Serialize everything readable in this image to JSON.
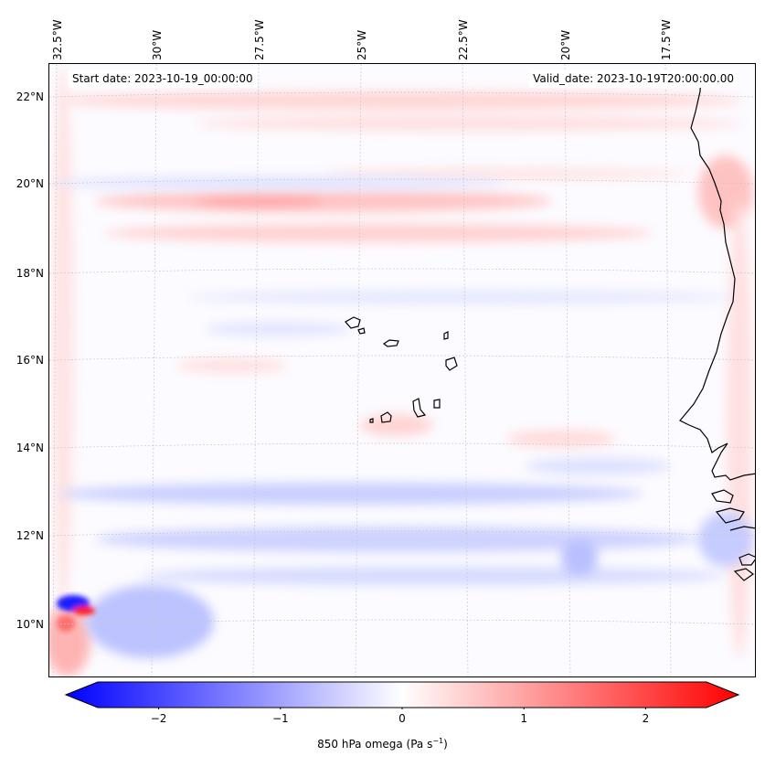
{
  "map": {
    "longitude_labels": [
      "32.5°W",
      "30°W",
      "27.5°W",
      "25°W",
      "22.5°W",
      "20°W",
      "17.5°W"
    ],
    "latitude_labels": [
      "22°N",
      "20°N",
      "18°N",
      "16°N",
      "14°N",
      "12°N",
      "10°N"
    ],
    "annotation_start": "Start date: 2023-10-19_00:00:00",
    "annotation_valid": "Valid_date: 2023-10-19T20:00:00.00"
  },
  "colorbar": {
    "label": "850 hPa omega (Pa s",
    "label_superscript": "−1",
    "label_suffix": ")",
    "tick_labels": [
      "−2",
      "−1",
      "0",
      "1",
      "2"
    ],
    "ticks": [
      -2,
      -1,
      0,
      1,
      2
    ],
    "range": [
      -2.5,
      2.5
    ],
    "colormap": "bwr",
    "color_low": "#0000ff",
    "color_mid": "#ffffff",
    "color_high": "#ff0000"
  }
}
